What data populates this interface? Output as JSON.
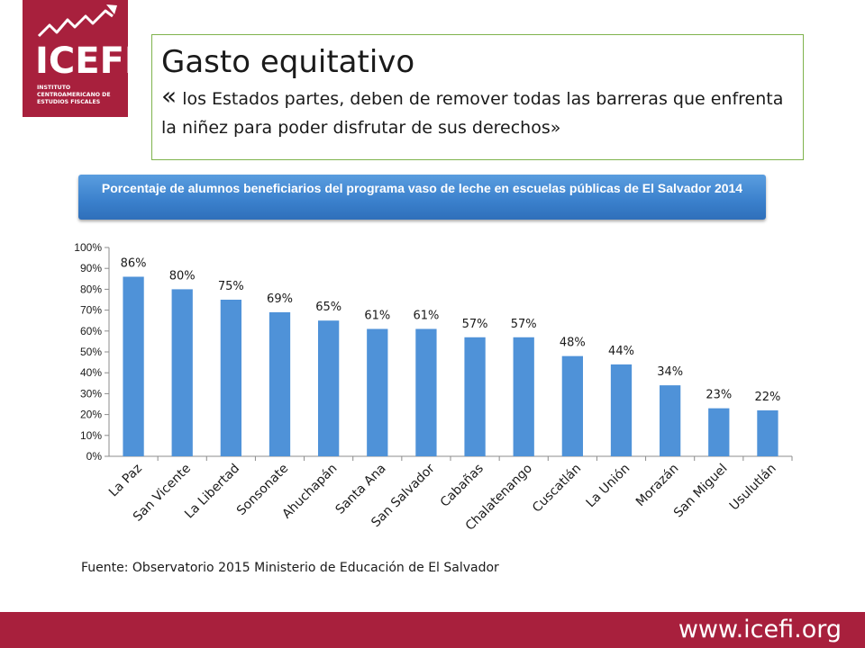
{
  "logo": {
    "name": "ICEFI",
    "subtitle": "INSTITUTO CENTROAMERICANO DE ESTUDIOS FISCALES"
  },
  "header": {
    "title": "Gasto equitativo",
    "quote_open": "«",
    "quote_text": "los Estados partes, deben de remover todas las barreras que enfrenta la niñez para poder disfrutar de sus derechos»"
  },
  "chart_data": {
    "type": "bar",
    "title": "Porcentaje de alumnos beneficiarios del programa vaso de leche en escuelas públicas de El Salvador 2014",
    "categories": [
      "La Paz",
      "San Vicente",
      "La Libertad",
      "Sonsonate",
      "Ahuchapán",
      "Santa Ana",
      "San Salvador",
      "Cabañas",
      "Chalatenango",
      "Cuscatlán",
      "La Unión",
      "Morazán",
      "San Miguel",
      "Usulutlán"
    ],
    "values": [
      86,
      80,
      75,
      69,
      65,
      61,
      61,
      57,
      57,
      48,
      44,
      34,
      23,
      22
    ],
    "data_labels": [
      "86%",
      "80%",
      "75%",
      "69%",
      "65%",
      "61%",
      "61%",
      "57%",
      "57%",
      "48%",
      "44%",
      "34%",
      "23%",
      "22%"
    ],
    "y_ticks": [
      "0%",
      "10%",
      "20%",
      "30%",
      "40%",
      "50%",
      "60%",
      "70%",
      "80%",
      "90%",
      "100%"
    ],
    "ylim": [
      0,
      100
    ],
    "bar_color": "#4f92d8",
    "grid": false,
    "legend": "none"
  },
  "source": "Fuente: Observatorio 2015 Ministerio de Educación de El Salvador",
  "footer": {
    "url": "www.icefi.org"
  },
  "colors": {
    "brand": "#a8203d",
    "accent": "#7fb34d"
  }
}
